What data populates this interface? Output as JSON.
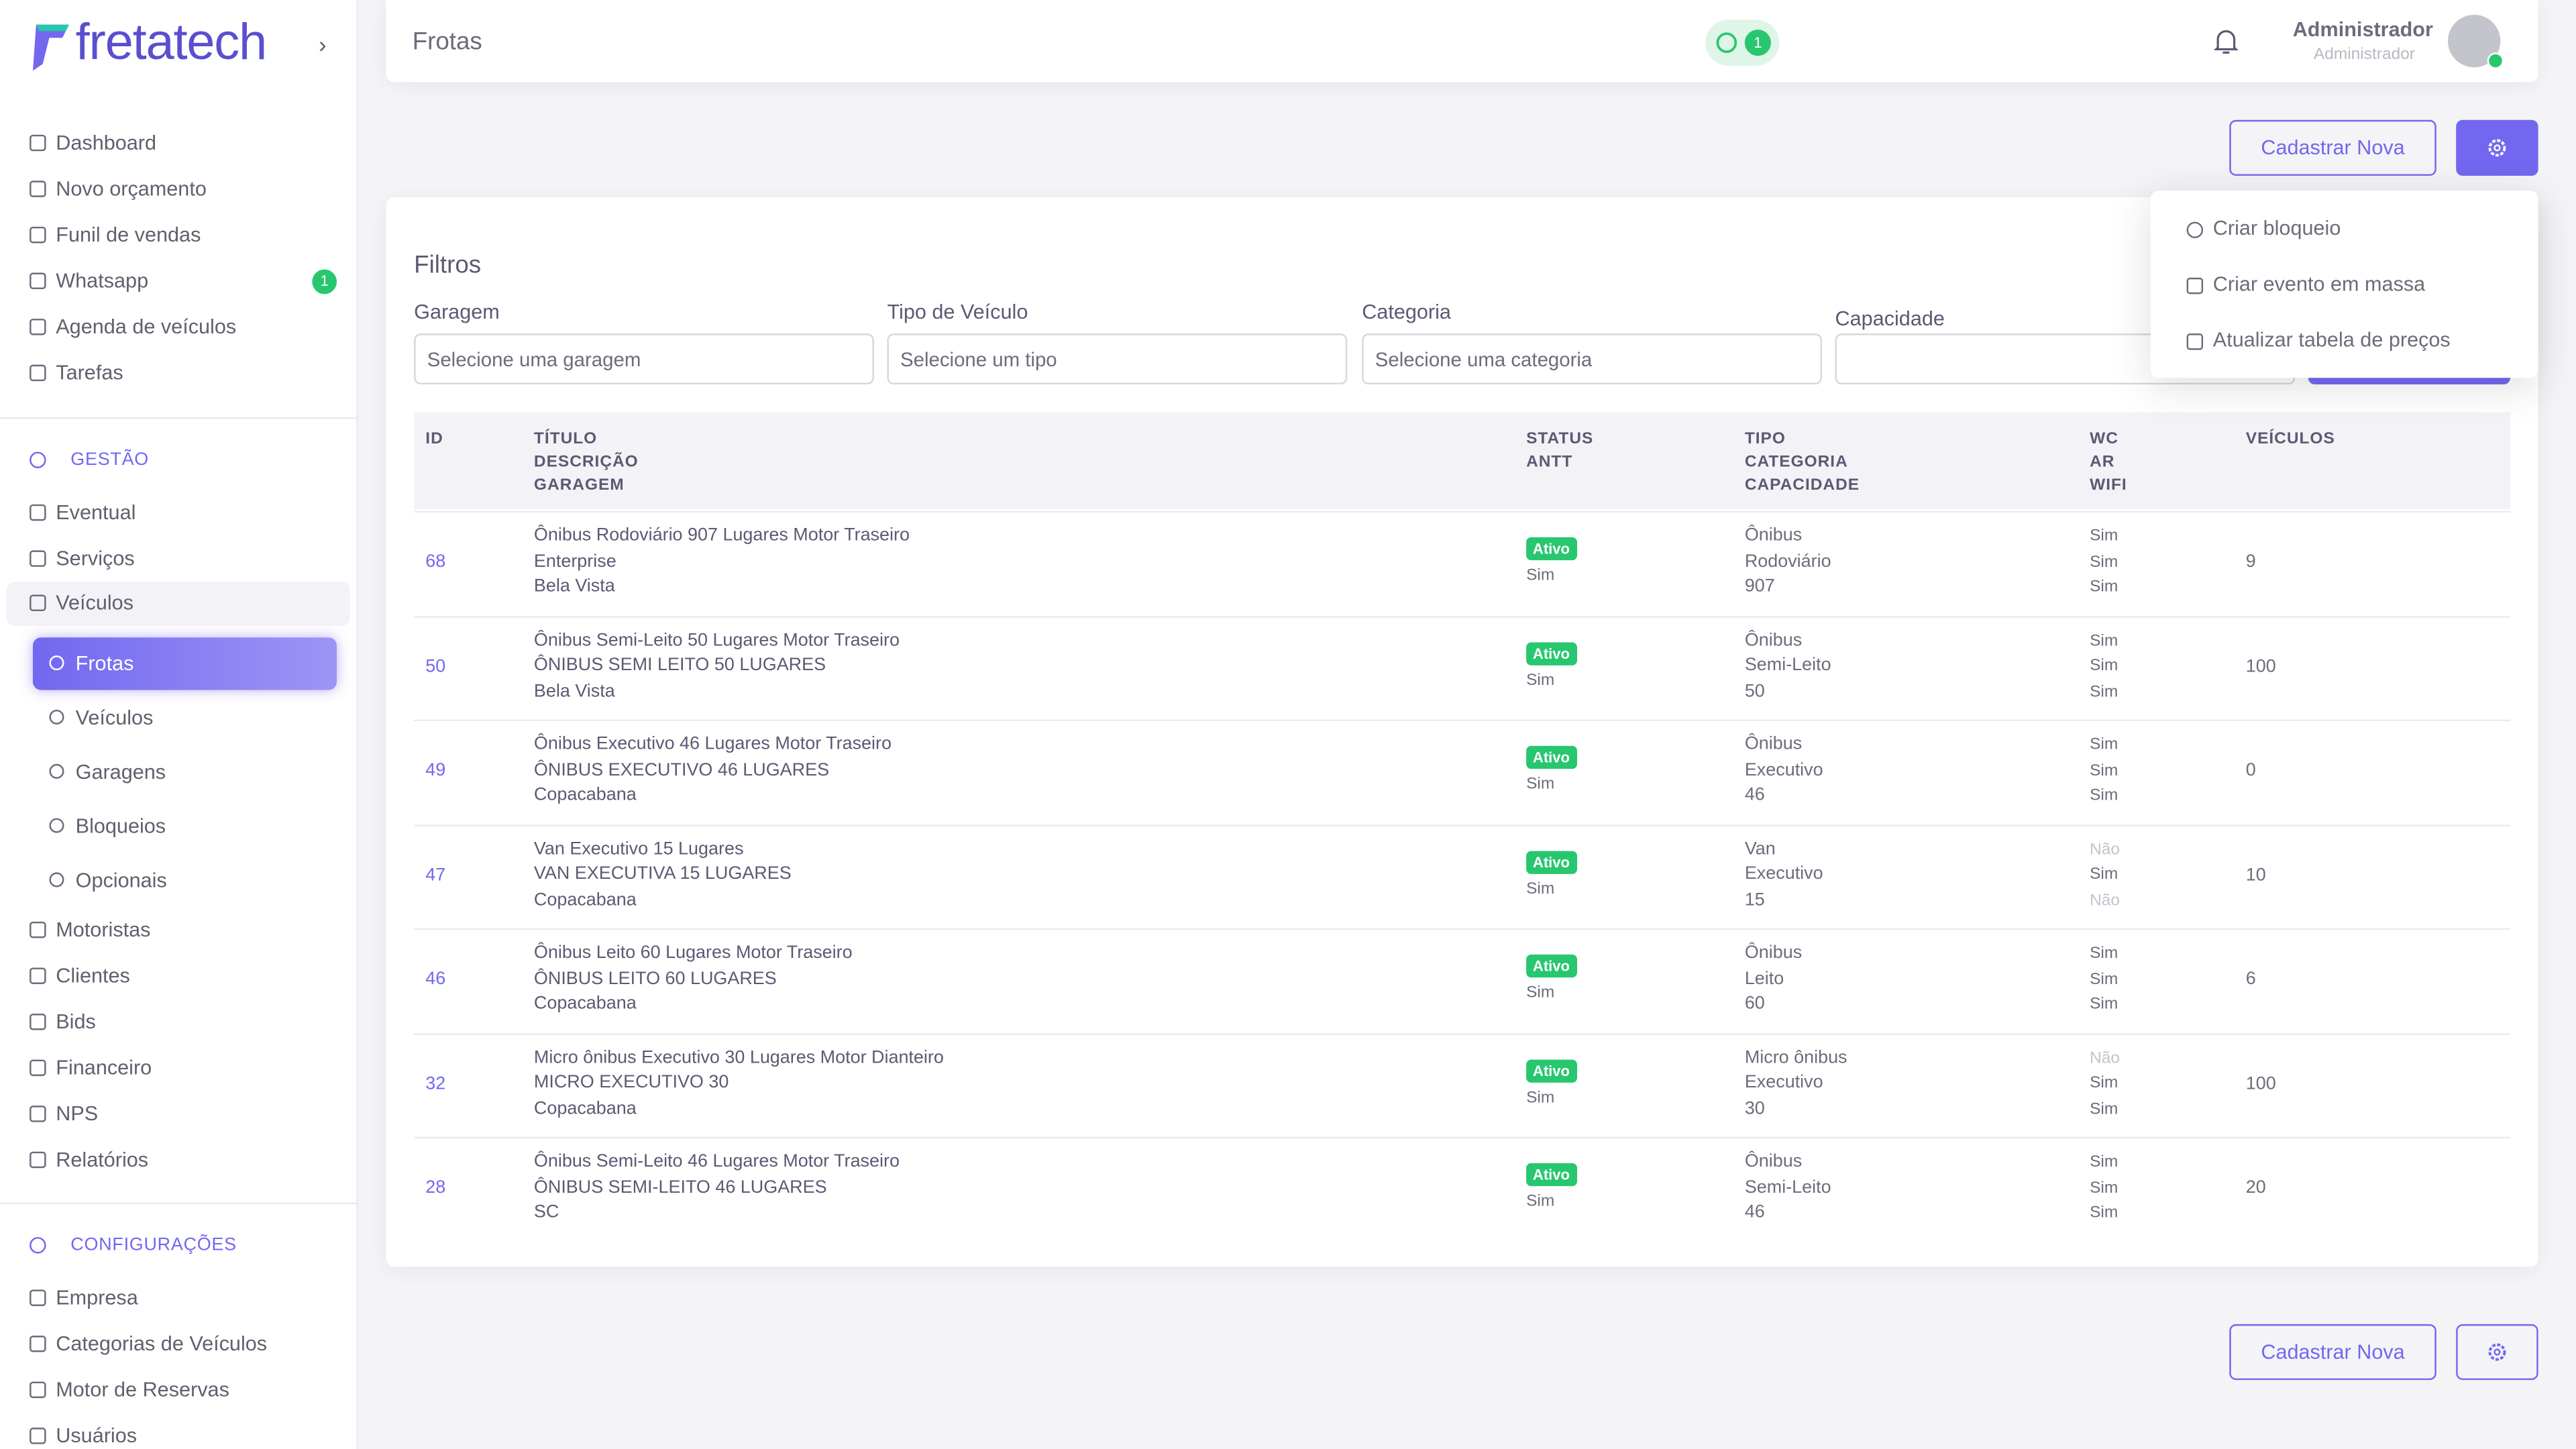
{
  "brand": "fretatech",
  "header": {
    "title": "Frotas",
    "whatsapp_badge": "1",
    "user_name": "Administrador",
    "user_role": "Administrador"
  },
  "sidebar": {
    "main": [
      {
        "label": "Dashboard"
      },
      {
        "label": "Novo orçamento"
      },
      {
        "label": "Funil de vendas"
      },
      {
        "label": "Whatsapp",
        "badge": "1"
      },
      {
        "label": "Agenda de veículos"
      },
      {
        "label": "Tarefas"
      }
    ],
    "gestao_title": "GESTÃO",
    "gestao": [
      {
        "label": "Eventual"
      },
      {
        "label": "Serviços"
      },
      {
        "label": "Veículos"
      }
    ],
    "veiculos_sub": [
      {
        "label": "Frotas"
      },
      {
        "label": "Veículos"
      },
      {
        "label": "Garagens"
      },
      {
        "label": "Bloqueios"
      },
      {
        "label": "Opcionais"
      }
    ],
    "gestao_after": [
      {
        "label": "Motoristas"
      },
      {
        "label": "Clientes"
      },
      {
        "label": "Bids"
      },
      {
        "label": "Financeiro"
      },
      {
        "label": "NPS"
      },
      {
        "label": "Relatórios"
      }
    ],
    "config_title": "CONFIGURAÇÕES",
    "config": [
      {
        "label": "Empresa"
      },
      {
        "label": "Categorias de Veículos"
      },
      {
        "label": "Motor de Reservas"
      },
      {
        "label": "Usuários"
      }
    ]
  },
  "actions": {
    "new_button": "Cadastrar Nova"
  },
  "menu": [
    "Criar bloqueio",
    "Criar evento em massa",
    "Atualizar tabela de preços"
  ],
  "filters": {
    "title": "Filtros",
    "fields": [
      {
        "label": "Garagem",
        "placeholder": "Selecione uma garagem"
      },
      {
        "label": "Tipo de Veículo",
        "placeholder": "Selecione um tipo"
      },
      {
        "label": "Categoria",
        "placeholder": "Selecione uma categoria"
      },
      {
        "label": "Capacidade"
      }
    ]
  },
  "table": {
    "headers": [
      [
        "ID"
      ],
      [
        "TÍTULO",
        "DESCRIÇÃO",
        "GARAGEM"
      ],
      [
        "STATUS",
        "ANTT"
      ],
      [
        "TIPO",
        "CATEGORIA",
        "CAPACIDADE"
      ],
      [
        "WC",
        "AR",
        "WIFI"
      ],
      [
        "VEÍCULOS"
      ]
    ],
    "rows": [
      {
        "id": 68,
        "title": "Ônibus Rodoviário 907 Lugares Motor Traseiro",
        "description": "Enterprise",
        "garage": "Bela Vista",
        "status": "Ativo",
        "antt": "Sim",
        "type": "Ônibus",
        "category": "Rodoviário",
        "capacity": 907,
        "wc": "Sim",
        "ar": "Sim",
        "wifi": "Sim",
        "vehicles": 9
      },
      {
        "id": 50,
        "title": "Ônibus Semi-Leito 50 Lugares Motor Traseiro",
        "description": "ÔNIBUS SEMI LEITO 50 LUGARES",
        "garage": "Bela Vista",
        "status": "Ativo",
        "antt": "Sim",
        "type": "Ônibus",
        "category": "Semi-Leito",
        "capacity": 50,
        "wc": "Sim",
        "ar": "Sim",
        "wifi": "Sim",
        "vehicles": 100
      },
      {
        "id": 49,
        "title": "Ônibus Executivo 46 Lugares Motor Traseiro",
        "description": "ÔNIBUS EXECUTIVO 46 LUGARES",
        "garage": "Copacabana",
        "status": "Ativo",
        "antt": "Sim",
        "type": "Ônibus",
        "category": "Executivo",
        "capacity": 46,
        "wc": "Sim",
        "ar": "Sim",
        "wifi": "Sim",
        "vehicles": 0
      },
      {
        "id": 47,
        "title": "Van Executivo 15 Lugares",
        "description": "VAN EXECUTIVA 15 LUGARES",
        "garage": "Copacabana",
        "status": "Ativo",
        "antt": "Sim",
        "type": "Van",
        "category": "Executivo",
        "capacity": 15,
        "wc": "Não",
        "ar": "Sim",
        "wifi": "Não",
        "vehicles": 10
      },
      {
        "id": 46,
        "title": "Ônibus Leito 60 Lugares Motor Traseiro",
        "description": "ÔNIBUS LEITO 60 LUGARES",
        "garage": "Copacabana",
        "status": "Ativo",
        "antt": "Sim",
        "type": "Ônibus",
        "category": "Leito",
        "capacity": 60,
        "wc": "Sim",
        "ar": "Sim",
        "wifi": "Sim",
        "vehicles": 6
      },
      {
        "id": 32,
        "title": "Micro ônibus Executivo 30 Lugares Motor Dianteiro",
        "description": "MICRO EXECUTIVO 30",
        "garage": "Copacabana",
        "status": "Ativo",
        "antt": "Sim",
        "type": "Micro ônibus",
        "category": "Executivo",
        "capacity": 30,
        "wc": "Não",
        "ar": "Sim",
        "wifi": "Sim",
        "vehicles": 100
      },
      {
        "id": 28,
        "title": "Ônibus Semi-Leito 46 Lugares Motor Traseiro",
        "description": "ÔNIBUS SEMI-LEITO 46 LUGARES",
        "garage": "SC",
        "status": "Ativo",
        "antt": "Sim",
        "type": "Ônibus",
        "category": "Semi-Leito",
        "capacity": 46,
        "wc": "Sim",
        "ar": "Sim",
        "wifi": "Sim",
        "vehicles": 20
      }
    ]
  }
}
